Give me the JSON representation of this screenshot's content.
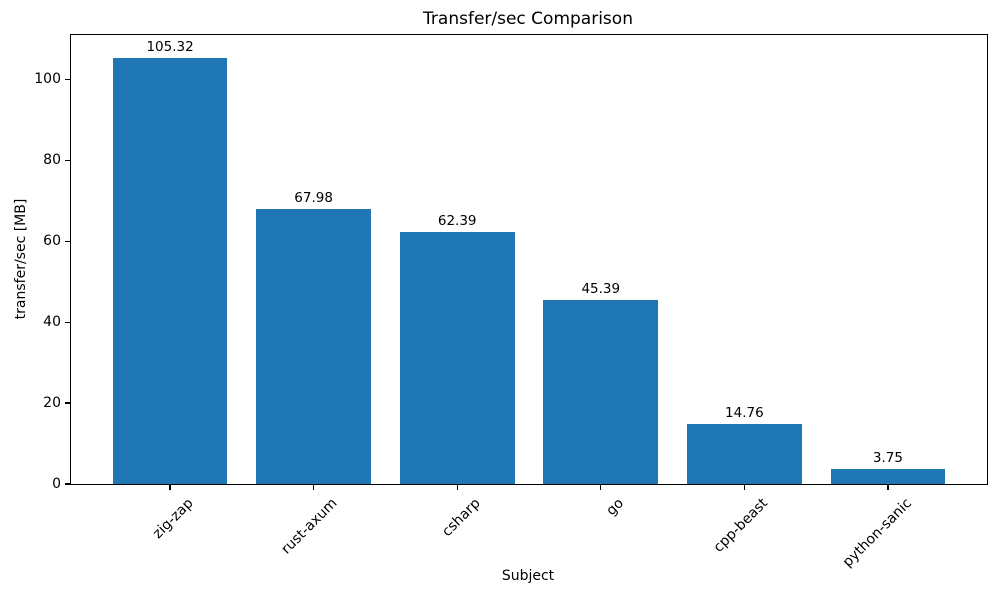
{
  "chart_data": {
    "type": "bar",
    "title": "Transfer/sec Comparison",
    "xlabel": "Subject",
    "ylabel": "transfer/sec [MB]",
    "categories": [
      "zig-zap",
      "rust-axum",
      "csharp",
      "go",
      "cpp-beast",
      "python-sanic"
    ],
    "values": [
      105.32,
      67.98,
      62.39,
      45.39,
      14.76,
      3.75
    ],
    "value_labels": [
      "105.32",
      "67.98",
      "62.39",
      "45.39",
      "14.76",
      "3.75"
    ],
    "yticks": [
      0,
      20,
      40,
      60,
      80,
      100
    ],
    "ylim": [
      0,
      111
    ],
    "grid": false,
    "legend": null,
    "bar_color": "#1f77b4",
    "background_color": "#ffffff",
    "text_color": "#000000"
  }
}
